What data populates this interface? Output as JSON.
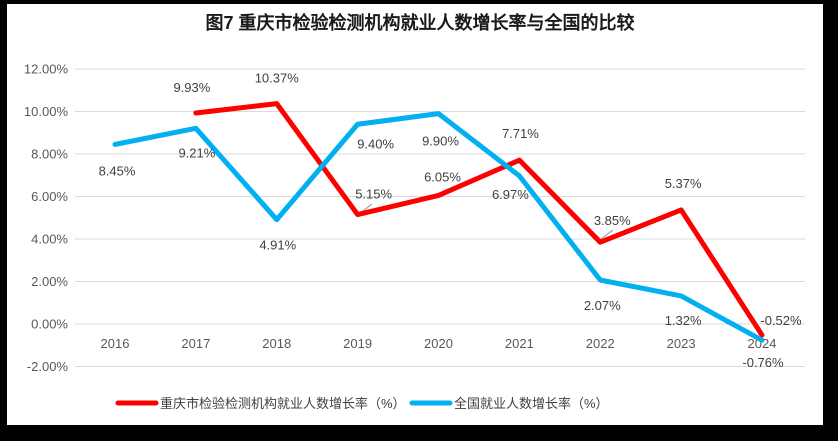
{
  "chart_data": {
    "type": "line",
    "title": "图7 重庆市检验检测机构就业人数增长率与全国的比较",
    "categories": [
      "2016",
      "2017",
      "2018",
      "2019",
      "2020",
      "2021",
      "2022",
      "2023",
      "2024"
    ],
    "series": [
      {
        "name": "重庆市检验检测机构就业人数增长率（%）",
        "color": "#FF0000",
        "values": [
          null,
          9.93,
          10.37,
          5.15,
          6.05,
          7.71,
          3.85,
          5.37,
          -0.52
        ],
        "labels": [
          "",
          "9.93%",
          "10.37%",
          "5.15%",
          "6.05%",
          "7.71%",
          "3.85%",
          "5.37%",
          "-0.52%"
        ]
      },
      {
        "name": "全国就业人数增长率（%）",
        "color": "#00B0F0",
        "values": [
          8.45,
          9.21,
          4.91,
          9.4,
          9.9,
          6.97,
          2.07,
          1.32,
          -0.76
        ],
        "labels": [
          "8.45%",
          "9.21%",
          "4.91%",
          "9.40%",
          "9.90%",
          "6.97%",
          "2.07%",
          "1.32%",
          "-0.76%"
        ]
      }
    ],
    "ylim": [
      -2,
      12
    ],
    "ytick_step": 2,
    "ytick_labels": [
      "12.00%",
      "10.00%",
      "8.00%",
      "6.00%",
      "4.00%",
      "2.00%",
      "0.00%",
      "-2.00%"
    ],
    "data_labels": true,
    "grid": true,
    "legend_position": "bottom",
    "colors": {
      "gridline": "#D9D9D9",
      "axis_text": "#595959",
      "data_label_text": "#404040",
      "title_text": "#1A1A1A",
      "frame": "#000000",
      "background": "#FFFFFF",
      "leader_line": "#A6A6A6"
    }
  }
}
